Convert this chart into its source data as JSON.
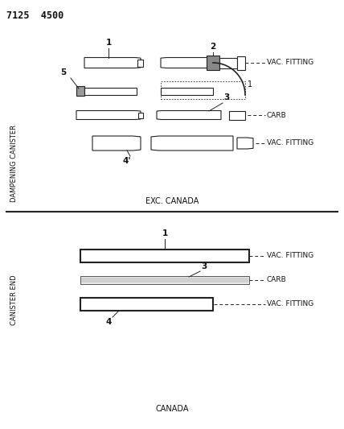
{
  "title": "7125  4500",
  "bg_color": "#ffffff",
  "line_color": "#222222",
  "text_color": "#111111",
  "top_label": "DAMPENING CANISTER",
  "bottom_label": "CANISTER END",
  "exc_canada_text": "EXC. CANADA",
  "canada_text": "CANADA",
  "figsize": [
    4.28,
    5.33
  ],
  "dpi": 100
}
